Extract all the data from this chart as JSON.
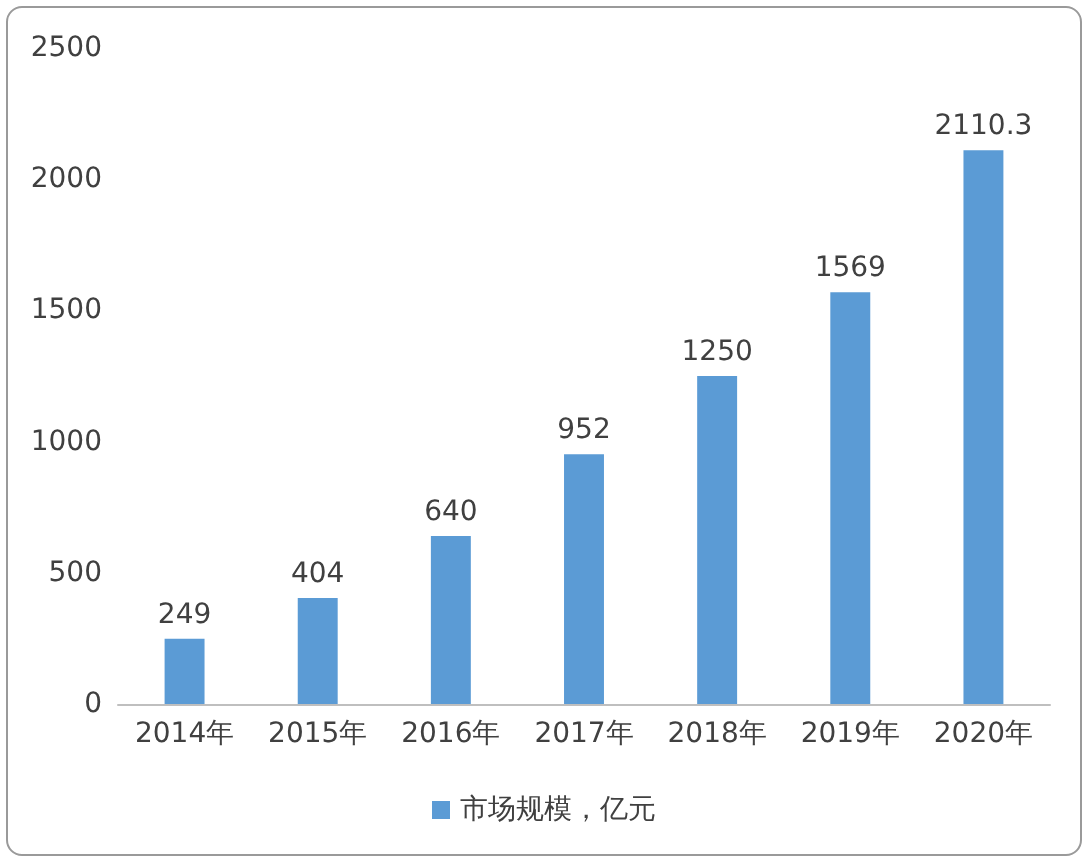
{
  "chart_data": {
    "type": "bar",
    "categories": [
      "2014年",
      "2015年",
      "2016年",
      "2017年",
      "2018年",
      "2019年",
      "2020年"
    ],
    "series": [
      {
        "name": "市场规模，亿元",
        "color": "#5b9bd5",
        "values": [
          249,
          404,
          640,
          952,
          1250,
          1569,
          2110.3
        ]
      }
    ],
    "ylim": [
      0,
      2500
    ],
    "yticks": [
      0,
      500,
      1000,
      1500,
      2000,
      2500
    ],
    "grid": false,
    "legend": "bottom",
    "data_labels": true
  }
}
